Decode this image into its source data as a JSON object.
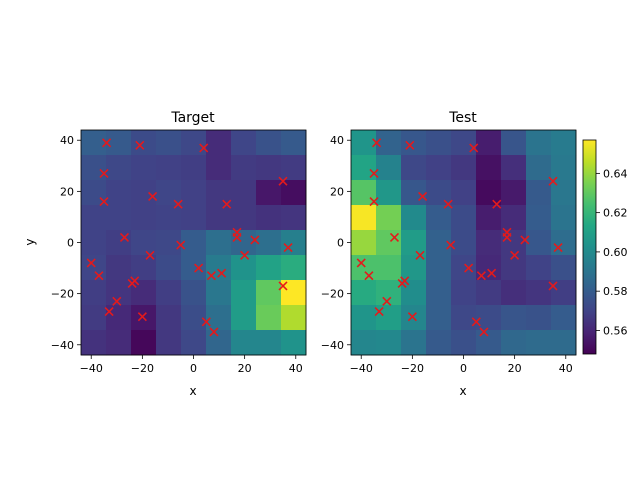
{
  "chart_data": [
    {
      "type": "heatmap",
      "title": "Target",
      "xlabel": "x",
      "ylabel": "y",
      "xlim": [
        -44,
        44
      ],
      "ylim": [
        -44,
        44
      ],
      "xticks": [
        -40,
        -20,
        0,
        20,
        40
      ],
      "yticks": [
        -40,
        -20,
        0,
        20,
        40
      ],
      "grid_size": 9,
      "color_range": [
        0.548,
        0.657
      ],
      "colormap": "viridis",
      "grid_rows_top_to_bottom": [
        [
          0.581,
          0.579,
          0.573,
          0.575,
          0.572,
          0.562,
          0.571,
          0.576,
          0.579
        ],
        [
          0.575,
          0.572,
          0.57,
          0.569,
          0.568,
          0.562,
          0.567,
          0.566,
          0.567
        ],
        [
          0.573,
          0.57,
          0.569,
          0.571,
          0.569,
          0.566,
          0.566,
          0.555,
          0.552
        ],
        [
          0.57,
          0.57,
          0.569,
          0.57,
          0.569,
          0.566,
          0.566,
          0.564,
          0.565
        ],
        [
          0.57,
          0.568,
          0.571,
          0.572,
          0.58,
          0.588,
          0.584,
          0.588,
          0.595
        ],
        [
          0.571,
          0.566,
          0.568,
          0.573,
          0.58,
          0.593,
          0.604,
          0.611,
          0.616
        ],
        [
          0.568,
          0.565,
          0.562,
          0.568,
          0.576,
          0.591,
          0.608,
          0.63,
          0.657
        ],
        [
          0.567,
          0.561,
          0.555,
          0.566,
          0.574,
          0.588,
          0.608,
          0.632,
          0.644
        ],
        [
          0.564,
          0.562,
          0.55,
          0.566,
          0.572,
          0.584,
          0.598,
          0.598,
          0.604
        ]
      ],
      "points": [
        {
          "x": -34,
          "y": 39
        },
        {
          "x": -21,
          "y": 38
        },
        {
          "x": 4,
          "y": 37
        },
        {
          "x": -35,
          "y": 27
        },
        {
          "x": 35,
          "y": 24
        },
        {
          "x": -16,
          "y": 18
        },
        {
          "x": -35,
          "y": 16
        },
        {
          "x": -6,
          "y": 15
        },
        {
          "x": 13,
          "y": 15
        },
        {
          "x": -27,
          "y": 2
        },
        {
          "x": 17,
          "y": 4
        },
        {
          "x": 17,
          "y": 2
        },
        {
          "x": 24,
          "y": 1
        },
        {
          "x": -5,
          "y": -1
        },
        {
          "x": 37,
          "y": -2
        },
        {
          "x": -17,
          "y": -5
        },
        {
          "x": 20,
          "y": -5
        },
        {
          "x": -40,
          "y": -8
        },
        {
          "x": 2,
          "y": -10
        },
        {
          "x": 11,
          "y": -12
        },
        {
          "x": -37,
          "y": -13
        },
        {
          "x": 7,
          "y": -13
        },
        {
          "x": -23,
          "y": -15
        },
        {
          "x": -24,
          "y": -16
        },
        {
          "x": 35,
          "y": -17
        },
        {
          "x": -30,
          "y": -23
        },
        {
          "x": -33,
          "y": -27
        },
        {
          "x": -20,
          "y": -29
        },
        {
          "x": 5,
          "y": -31
        },
        {
          "x": 8,
          "y": -35
        }
      ]
    },
    {
      "type": "heatmap",
      "title": "Test",
      "xlabel": "x",
      "ylabel": "",
      "xlim": [
        -44,
        44
      ],
      "ylim": [
        -44,
        44
      ],
      "xticks": [
        -40,
        -20,
        0,
        20,
        40
      ],
      "yticks": [
        -40,
        -20,
        0,
        20,
        40
      ],
      "grid_size": 9,
      "color_range": [
        0.548,
        0.657
      ],
      "colormap": "viridis",
      "grid_rows_top_to_bottom": [
        [
          0.605,
          0.583,
          0.578,
          0.575,
          0.572,
          0.557,
          0.577,
          0.59,
          0.593
        ],
        [
          0.612,
          0.596,
          0.572,
          0.569,
          0.566,
          0.553,
          0.563,
          0.586,
          0.592
        ],
        [
          0.628,
          0.606,
          0.578,
          0.573,
          0.569,
          0.551,
          0.556,
          0.579,
          0.591
        ],
        [
          0.656,
          0.634,
          0.6,
          0.58,
          0.573,
          0.557,
          0.562,
          0.58,
          0.59
        ],
        [
          0.64,
          0.63,
          0.608,
          0.582,
          0.573,
          0.562,
          0.566,
          0.578,
          0.587
        ],
        [
          0.626,
          0.626,
          0.606,
          0.582,
          0.571,
          0.561,
          0.566,
          0.57,
          0.575
        ],
        [
          0.615,
          0.618,
          0.601,
          0.581,
          0.57,
          0.567,
          0.563,
          0.565,
          0.568
        ],
        [
          0.605,
          0.609,
          0.598,
          0.581,
          0.572,
          0.573,
          0.577,
          0.576,
          0.58
        ],
        [
          0.598,
          0.599,
          0.59,
          0.579,
          0.575,
          0.579,
          0.585,
          0.586,
          0.586
        ]
      ],
      "points": [
        {
          "x": -34,
          "y": 39
        },
        {
          "x": -21,
          "y": 38
        },
        {
          "x": 4,
          "y": 37
        },
        {
          "x": -35,
          "y": 27
        },
        {
          "x": 35,
          "y": 24
        },
        {
          "x": -16,
          "y": 18
        },
        {
          "x": -35,
          "y": 16
        },
        {
          "x": -6,
          "y": 15
        },
        {
          "x": 13,
          "y": 15
        },
        {
          "x": -27,
          "y": 2
        },
        {
          "x": 17,
          "y": 4
        },
        {
          "x": 17,
          "y": 2
        },
        {
          "x": 24,
          "y": 1
        },
        {
          "x": -5,
          "y": -1
        },
        {
          "x": 37,
          "y": -2
        },
        {
          "x": -17,
          "y": -5
        },
        {
          "x": 20,
          "y": -5
        },
        {
          "x": -40,
          "y": -8
        },
        {
          "x": 2,
          "y": -10
        },
        {
          "x": 11,
          "y": -12
        },
        {
          "x": -37,
          "y": -13
        },
        {
          "x": 7,
          "y": -13
        },
        {
          "x": -23,
          "y": -15
        },
        {
          "x": -24,
          "y": -16
        },
        {
          "x": 35,
          "y": -17
        },
        {
          "x": -30,
          "y": -23
        },
        {
          "x": -33,
          "y": -27
        },
        {
          "x": -20,
          "y": -29
        },
        {
          "x": 5,
          "y": -31
        },
        {
          "x": 8,
          "y": -35
        }
      ]
    }
  ],
  "colorbar": {
    "ticks": [
      0.56,
      0.58,
      0.6,
      0.62,
      0.64
    ],
    "tick_labels": [
      "0.56",
      "0.58",
      "0.60",
      "0.62",
      "0.64"
    ],
    "range": [
      0.548,
      0.657
    ]
  },
  "colors": {
    "marker": "#e41a1c",
    "axis": "#000000"
  }
}
